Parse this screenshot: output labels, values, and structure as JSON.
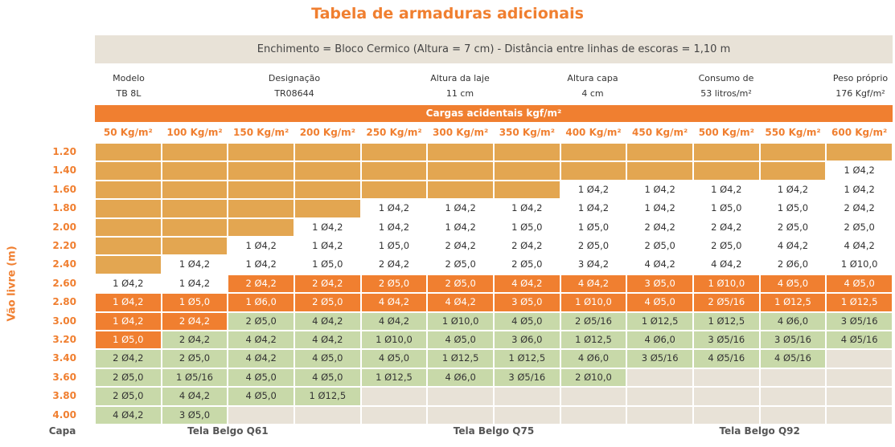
{
  "header": {
    "title": "Tabela de armaduras adicionais",
    "banner": "Enchimento = Bloco Cermico (Altura = 7 cm) - Distância entre linhas de escoras = 1,10 m"
  },
  "info": [
    {
      "label": "Modelo",
      "value": "TB 8L"
    },
    {
      "label": "Designação",
      "value": "TR08644"
    },
    {
      "label": "Altura da laje",
      "value": "11 cm"
    },
    {
      "label": "Altura capa",
      "value": "4 cm"
    },
    {
      "label": "Consumo de",
      "value": "53 litros/m²"
    },
    {
      "label": "Peso próprio",
      "value": "176 Kgf/m²"
    }
  ],
  "table": {
    "group_header": "Cargas acidentais kgf/m²",
    "row_axis_label": "Vão livre (m)",
    "columns": [
      "50 Kg/m²",
      "100 Kg/m²",
      "150 Kg/m²",
      "200 Kg/m²",
      "250 Kg/m²",
      "300 Kg/m²",
      "350 Kg/m²",
      "400 Kg/m²",
      "450 Kg/m²",
      "500 Kg/m²",
      "550 Kg/m²",
      "600 Kg/m²"
    ],
    "palette": {
      "tan": "#e3a651",
      "white": "#ffffff",
      "orange": "#f07f30",
      "green": "#c8d9a9",
      "beige": "#e8e2d7"
    },
    "rows": [
      {
        "label": "1.20",
        "cells": [
          null,
          null,
          null,
          null,
          null,
          null,
          null,
          null,
          null,
          null,
          null,
          null
        ],
        "colors": [
          "tan",
          "tan",
          "tan",
          "tan",
          "tan",
          "tan",
          "tan",
          "tan",
          "tan",
          "tan",
          "tan",
          "tan"
        ]
      },
      {
        "label": "1.40",
        "cells": [
          null,
          null,
          null,
          null,
          null,
          null,
          null,
          null,
          null,
          null,
          null,
          "1 Ø4,2"
        ],
        "colors": [
          "tan",
          "tan",
          "tan",
          "tan",
          "tan",
          "tan",
          "tan",
          "tan",
          "tan",
          "tan",
          "tan",
          "white"
        ]
      },
      {
        "label": "1.60",
        "cells": [
          null,
          null,
          null,
          null,
          null,
          null,
          null,
          "1 Ø4,2",
          "1 Ø4,2",
          "1 Ø4,2",
          "1 Ø4,2",
          "1 Ø4,2"
        ],
        "colors": [
          "tan",
          "tan",
          "tan",
          "tan",
          "tan",
          "tan",
          "tan",
          "white",
          "white",
          "white",
          "white",
          "white"
        ]
      },
      {
        "label": "1.80",
        "cells": [
          null,
          null,
          null,
          null,
          "1 Ø4,2",
          "1 Ø4,2",
          "1 Ø4,2",
          "1 Ø4,2",
          "1 Ø4,2",
          "1 Ø5,0",
          "1 Ø5,0",
          "2 Ø4,2"
        ],
        "colors": [
          "tan",
          "tan",
          "tan",
          "tan",
          "white",
          "white",
          "white",
          "white",
          "white",
          "white",
          "white",
          "white"
        ]
      },
      {
        "label": "2.00",
        "cells": [
          null,
          null,
          null,
          "1 Ø4,2",
          "1 Ø4,2",
          "1 Ø4,2",
          "1 Ø5,0",
          "1 Ø5,0",
          "2 Ø4,2",
          "2 Ø4,2",
          "2 Ø5,0",
          "2 Ø5,0"
        ],
        "colors": [
          "tan",
          "tan",
          "tan",
          "white",
          "white",
          "white",
          "white",
          "white",
          "white",
          "white",
          "white",
          "white"
        ]
      },
      {
        "label": "2.20",
        "cells": [
          null,
          null,
          "1 Ø4,2",
          "1 Ø4,2",
          "1 Ø5,0",
          "2 Ø4,2",
          "2 Ø4,2",
          "2 Ø5,0",
          "2 Ø5,0",
          "2 Ø5,0",
          "4 Ø4,2",
          "4 Ø4,2"
        ],
        "colors": [
          "tan",
          "tan",
          "white",
          "white",
          "white",
          "white",
          "white",
          "white",
          "white",
          "white",
          "white",
          "white"
        ]
      },
      {
        "label": "2.40",
        "cells": [
          null,
          "1 Ø4,2",
          "1 Ø4,2",
          "1 Ø5,0",
          "2 Ø4,2",
          "2 Ø5,0",
          "2 Ø5,0",
          "3 Ø4,2",
          "4 Ø4,2",
          "4 Ø4,2",
          "2 Ø6,0",
          "1 Ø10,0"
        ],
        "colors": [
          "tan",
          "white",
          "white",
          "white",
          "white",
          "white",
          "white",
          "white",
          "white",
          "white",
          "white",
          "white"
        ]
      },
      {
        "label": "2.60",
        "cells": [
          "1 Ø4,2",
          "1 Ø4,2",
          "2 Ø4,2",
          "2 Ø4,2",
          "2 Ø5,0",
          "2 Ø5,0",
          "4 Ø4,2",
          "4 Ø4,2",
          "3 Ø5,0",
          "1 Ø10,0",
          "4 Ø5,0",
          "4 Ø5,0"
        ],
        "colors": [
          "white",
          "white",
          "orange",
          "orange",
          "orange",
          "orange",
          "orange",
          "orange",
          "orange",
          "orange",
          "orange",
          "orange"
        ]
      },
      {
        "label": "2.80",
        "cells": [
          "1 Ø4,2",
          "1 Ø5,0",
          "1 Ø6,0",
          "2 Ø5,0",
          "4 Ø4,2",
          "4 Ø4,2",
          "3 Ø5,0",
          "1 Ø10,0",
          "4 Ø5,0",
          "2 Ø5/16",
          "1 Ø12,5",
          "1 Ø12,5"
        ],
        "colors": [
          "orange",
          "orange",
          "orange",
          "orange",
          "orange",
          "orange",
          "orange",
          "orange",
          "orange",
          "orange",
          "orange",
          "orange"
        ]
      },
      {
        "label": "3.00",
        "cells": [
          "1 Ø4,2",
          "2 Ø4,2",
          "2 Ø5,0",
          "4 Ø4,2",
          "4 Ø4,2",
          "1 Ø10,0",
          "4 Ø5,0",
          "2 Ø5/16",
          "1 Ø12,5",
          "1 Ø12,5",
          "4 Ø6,0",
          "3 Ø5/16"
        ],
        "colors": [
          "orange",
          "orange",
          "green",
          "green",
          "green",
          "green",
          "green",
          "green",
          "green",
          "green",
          "green",
          "green"
        ]
      },
      {
        "label": "3.20",
        "cells": [
          "1 Ø5,0",
          "2 Ø4,2",
          "4 Ø4,2",
          "4 Ø4,2",
          "1 Ø10,0",
          "4 Ø5,0",
          "3 Ø6,0",
          "1 Ø12,5",
          "4 Ø6,0",
          "3 Ø5/16",
          "3 Ø5/16",
          "4 Ø5/16"
        ],
        "colors": [
          "orange",
          "green",
          "green",
          "green",
          "green",
          "green",
          "green",
          "green",
          "green",
          "green",
          "green",
          "green"
        ]
      },
      {
        "label": "3.40",
        "cells": [
          "2 Ø4,2",
          "2 Ø5,0",
          "4 Ø4,2",
          "4 Ø5,0",
          "4 Ø5,0",
          "1 Ø12,5",
          "1 Ø12,5",
          "4 Ø6,0",
          "3 Ø5/16",
          "4 Ø5/16",
          "4 Ø5/16",
          null
        ],
        "colors": [
          "green",
          "green",
          "green",
          "green",
          "green",
          "green",
          "green",
          "green",
          "green",
          "green",
          "green",
          "beige"
        ]
      },
      {
        "label": "3.60",
        "cells": [
          "2 Ø5,0",
          "1 Ø5/16",
          "4 Ø5,0",
          "4 Ø5,0",
          "1 Ø12,5",
          "4 Ø6,0",
          "3 Ø5/16",
          "2 Ø10,0",
          null,
          null,
          null,
          null
        ],
        "colors": [
          "green",
          "green",
          "green",
          "green",
          "green",
          "green",
          "green",
          "green",
          "beige",
          "beige",
          "beige",
          "beige"
        ]
      },
      {
        "label": "3.80",
        "cells": [
          "2 Ø5,0",
          "4 Ø4,2",
          "4 Ø5,0",
          "1 Ø12,5",
          null,
          null,
          null,
          null,
          null,
          null,
          null,
          null
        ],
        "colors": [
          "green",
          "green",
          "green",
          "green",
          "beige",
          "beige",
          "beige",
          "beige",
          "beige",
          "beige",
          "beige",
          "beige"
        ]
      },
      {
        "label": "4.00",
        "cells": [
          "4 Ø4,2",
          "3 Ø5,0",
          null,
          null,
          null,
          null,
          null,
          null,
          null,
          null,
          null,
          null
        ],
        "colors": [
          "green",
          "green",
          "beige",
          "beige",
          "beige",
          "beige",
          "beige",
          "beige",
          "beige",
          "beige",
          "beige",
          "beige"
        ]
      }
    ]
  },
  "footer": {
    "label": "Capa",
    "groups": [
      "Tela Belgo Q61",
      "Tela Belgo Q75",
      "Tela Belgo Q92"
    ]
  }
}
